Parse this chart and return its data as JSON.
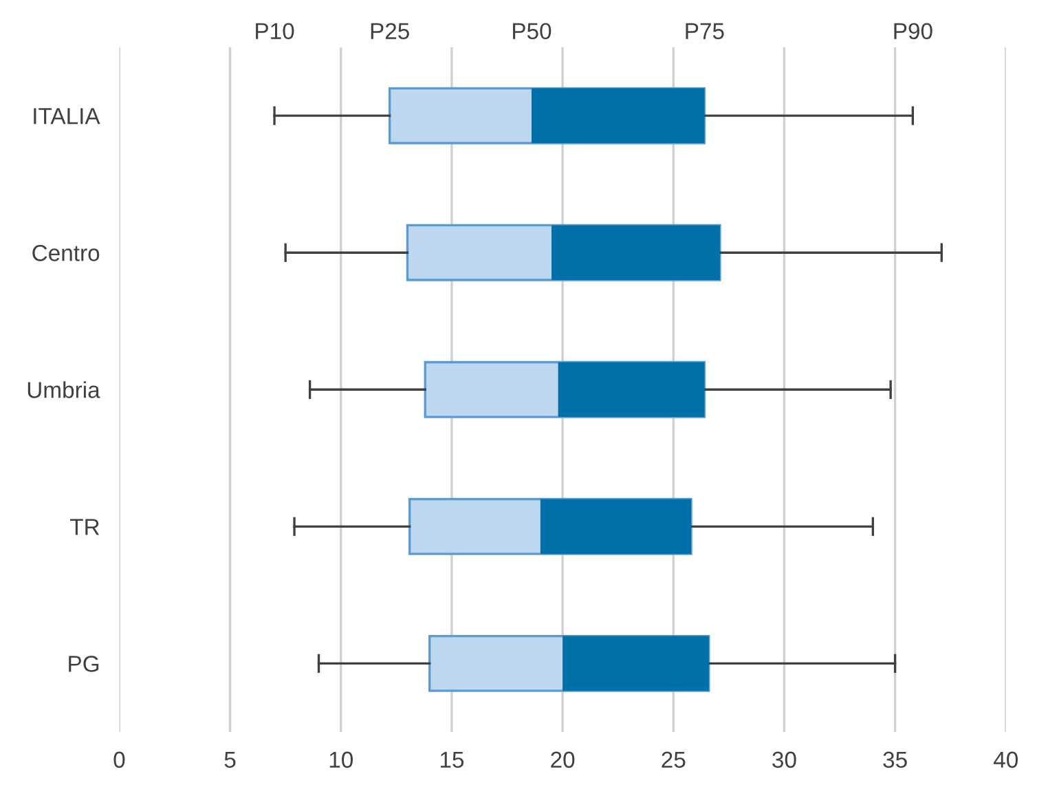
{
  "chart_data": {
    "type": "box",
    "orientation": "horizontal",
    "categories": [
      "ITALIA",
      "Centro",
      "Umbria",
      "TR",
      "PG"
    ],
    "series": [
      {
        "color": "#0070a8",
        "colors": [
          "#bdd7ee",
          "#bdd7ee",
          "#bdd7ee",
          "#bdd7ee",
          "#bdd7ee"
        ],
        "boxes": [
          {
            "low": 7.0,
            "q1": 12.2,
            "median": 18.6,
            "q3": 26.4,
            "high": 35.8
          },
          {
            "low": 7.5,
            "q1": 13.0,
            "median": 19.5,
            "q3": 27.1,
            "high": 37.1
          },
          {
            "low": 8.6,
            "q1": 13.8,
            "median": 19.8,
            "q3": 26.4,
            "high": 34.8
          },
          {
            "low": 7.9,
            "q1": 13.1,
            "median": 19.0,
            "q3": 25.8,
            "high": 34.0
          },
          {
            "low": 9.0,
            "q1": 14.0,
            "median": 20.0,
            "q3": 26.6,
            "high": 35.0
          }
        ]
      }
    ],
    "xlim": [
      0,
      40
    ],
    "xticks": [
      0,
      5,
      10,
      15,
      20,
      25,
      30,
      35,
      40
    ],
    "grid": "x",
    "annotations": [
      "P10",
      "P25",
      "P50",
      "P75",
      "P90"
    ]
  }
}
